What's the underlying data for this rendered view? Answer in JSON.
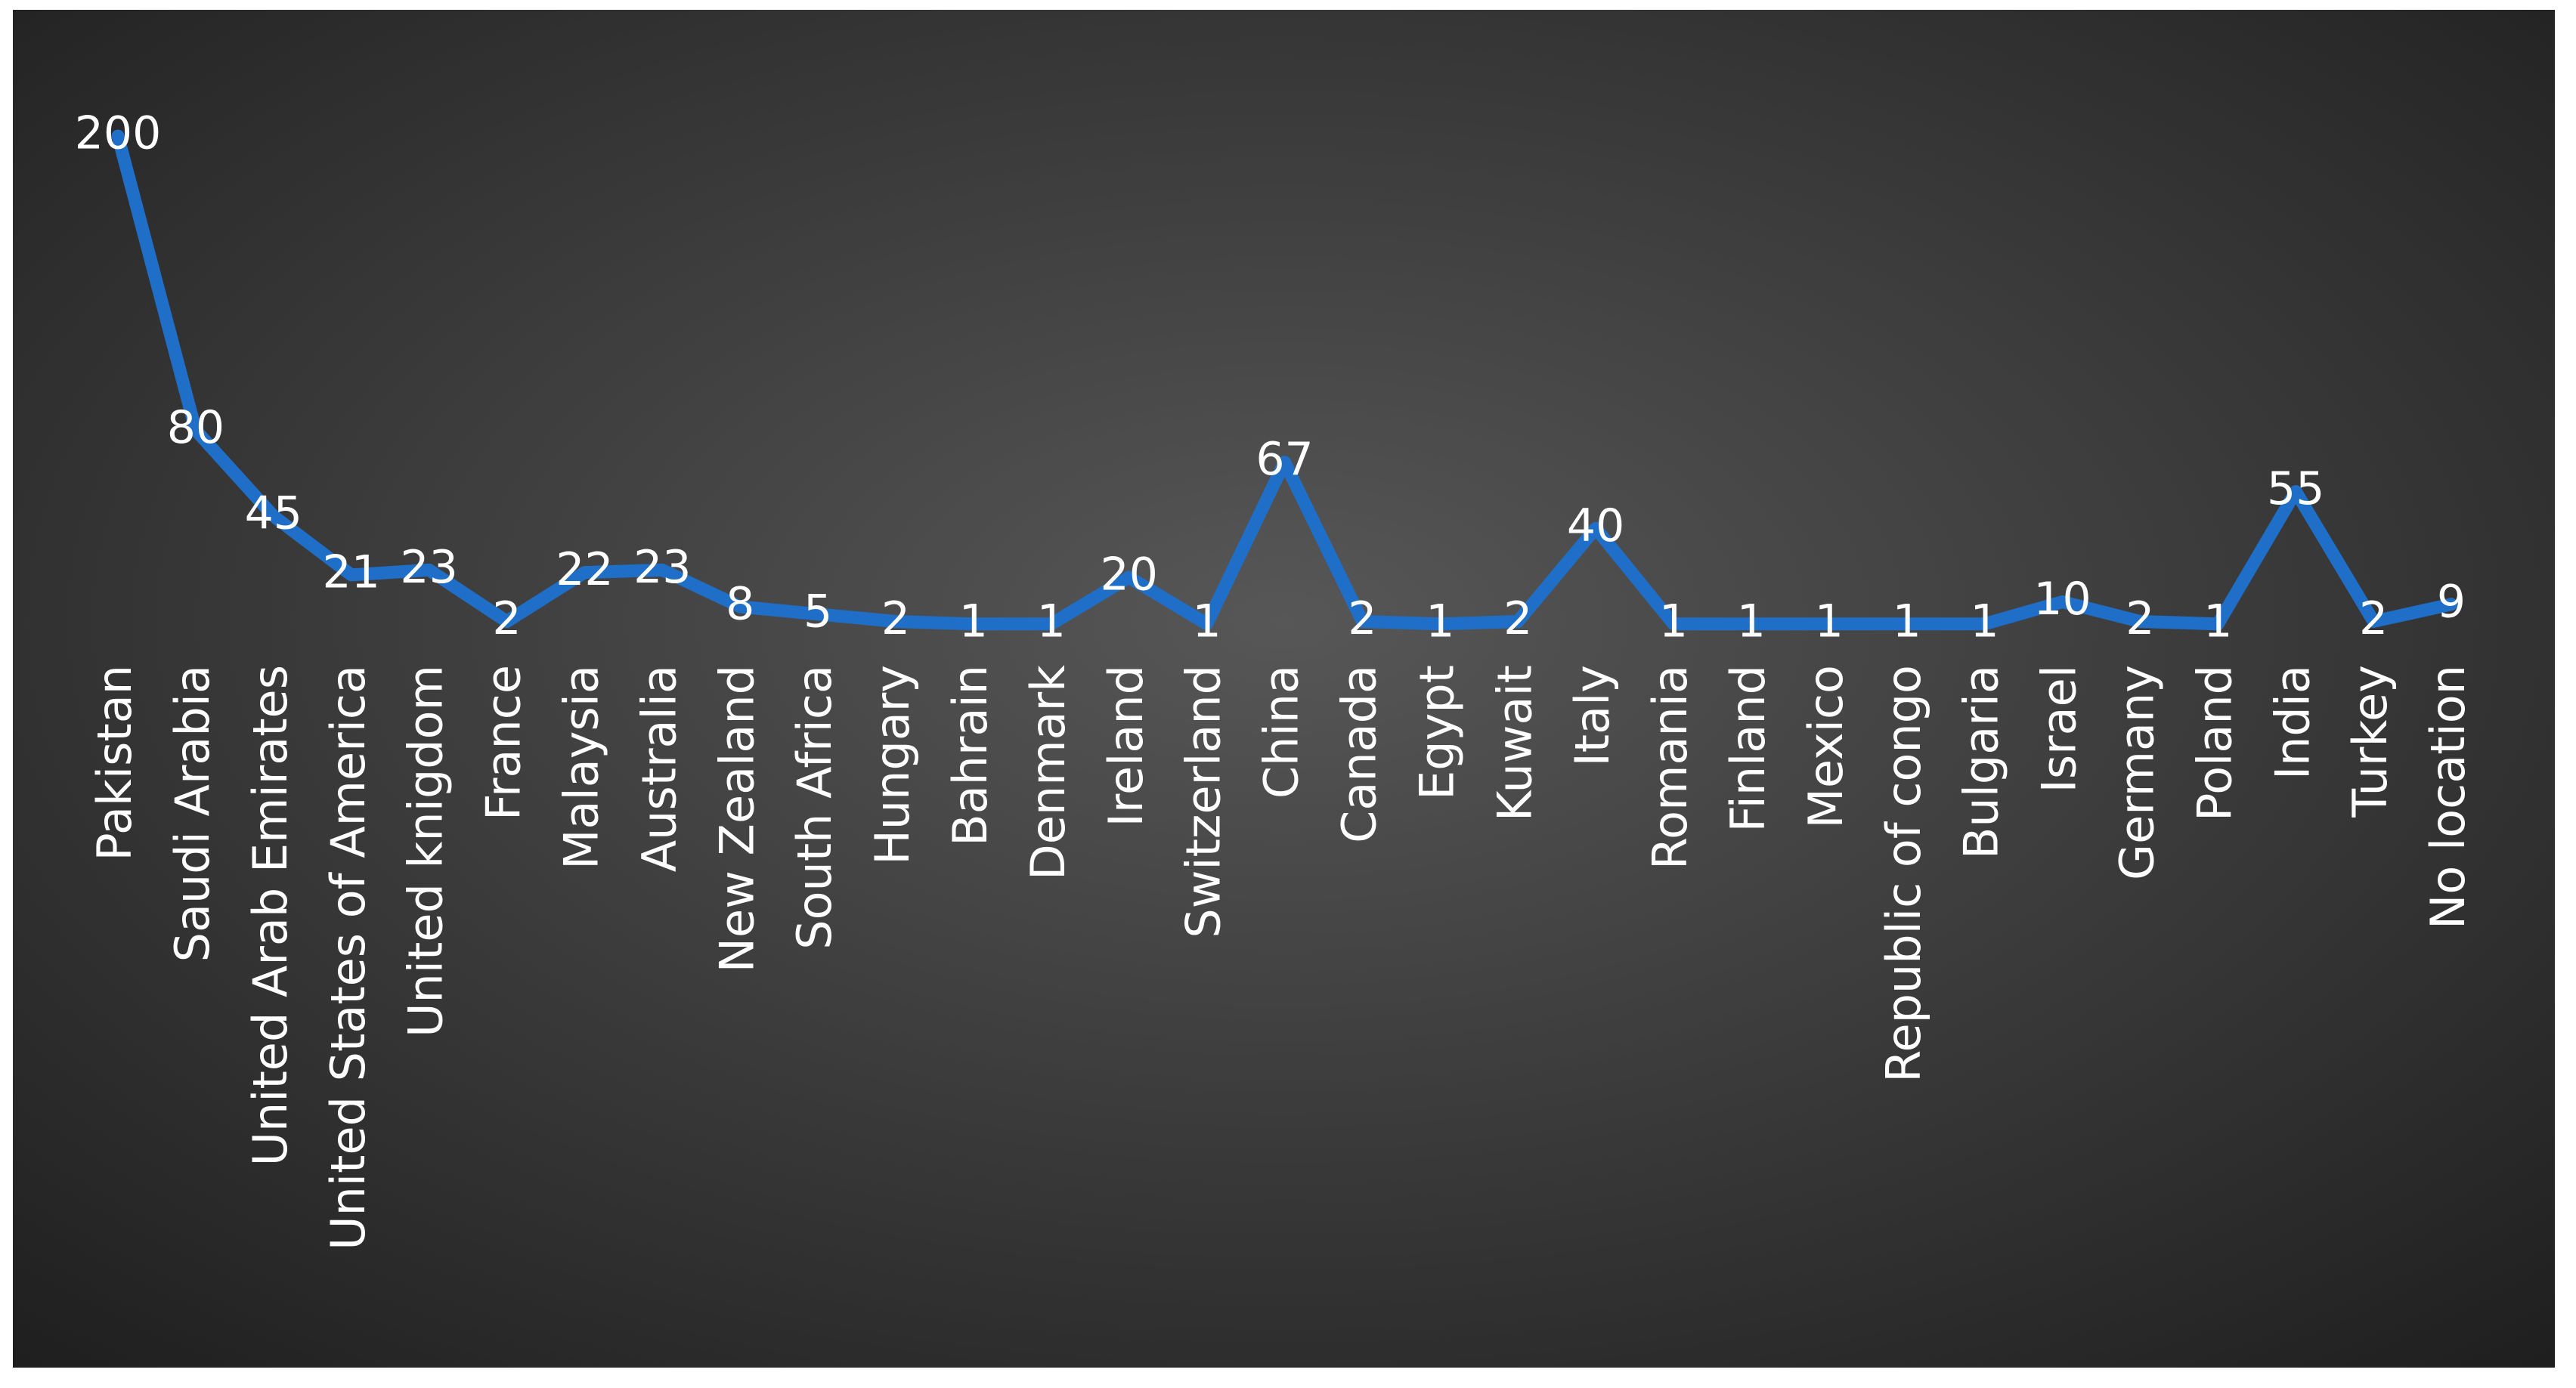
{
  "chart_data": {
    "type": "line",
    "categories": [
      "Pakistan",
      "Saudi Arabia",
      "United Arab Emirates",
      "United States of America",
      "United knigdom",
      "France",
      "Malaysia",
      "Australia",
      "New Zealand",
      "South Africa",
      "Hungary",
      "Bahrain",
      "Denmark",
      "Ireland",
      "Switzerland",
      "China",
      "Canada",
      "Egypt",
      "Kuwait",
      "Italy",
      "Romania",
      "Finland",
      "Mexico",
      "Republic of congo",
      "Bulgaria",
      "Israel",
      "Germany",
      "Poland",
      "India",
      "Turkey",
      "No location"
    ],
    "values": [
      200,
      80,
      45,
      21,
      23,
      2,
      22,
      23,
      8,
      5,
      2,
      1,
      1,
      20,
      1,
      67,
      2,
      1,
      2,
      40,
      1,
      1,
      1,
      1,
      1,
      10,
      2,
      1,
      55,
      2,
      9
    ],
    "color": "#1f6fc8"
  }
}
